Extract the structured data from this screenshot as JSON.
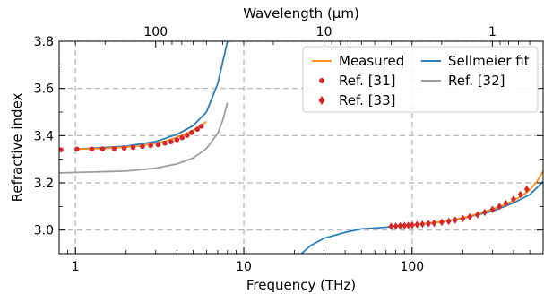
{
  "chart_data": {
    "type": "line",
    "xlabel": "Frequency (THz)",
    "ylabel": "Refractive index",
    "top_xlabel": "Wavelength (µm)",
    "x_scale": "log",
    "top_x_scale": "log",
    "xlim": [
      0.8,
      600
    ],
    "ylim": [
      2.9,
      3.8
    ],
    "x_ticks": [
      {
        "value": 1,
        "label": "1"
      },
      {
        "value": 10,
        "label": "10"
      },
      {
        "value": 100,
        "label": "100"
      }
    ],
    "y_ticks": [
      {
        "value": 3.0,
        "label": "3.0"
      },
      {
        "value": 3.2,
        "label": "3.2"
      },
      {
        "value": 3.4,
        "label": "3.4"
      },
      {
        "value": 3.6,
        "label": "3.6"
      },
      {
        "value": 3.8,
        "label": "3.8"
      }
    ],
    "top_ticks": [
      {
        "wavelength_um": 100,
        "label": "100"
      },
      {
        "wavelength_um": 10,
        "label": "10"
      },
      {
        "wavelength_um": 1,
        "label": "1"
      }
    ],
    "grid": true,
    "legend_position": "top-right",
    "legend_order": [
      "Measured",
      "Sellmeier fit",
      "Ref. [31]",
      "Ref. [32]",
      "Ref. [33]"
    ],
    "series": [
      {
        "name": "Sellmeier fit",
        "kind": "line",
        "color": "#2c7fb8",
        "x": [
          1,
          2,
          3,
          4,
          5,
          6,
          7,
          8
        ],
        "y": [
          3.343,
          3.355,
          3.375,
          3.405,
          3.442,
          3.5,
          3.62,
          3.8
        ]
      },
      {
        "name": "Sellmeier fit",
        "kind": "line",
        "color": "#2c7fb8",
        "x": [
          22,
          25,
          30,
          40,
          50,
          70,
          100,
          150,
          200,
          300,
          400,
          500,
          600
        ],
        "y": [
          2.9,
          2.935,
          2.965,
          2.99,
          3.005,
          3.012,
          3.022,
          3.035,
          3.05,
          3.08,
          3.115,
          3.15,
          3.205
        ]
      },
      {
        "name": "Measured",
        "kind": "line",
        "color": "#ff8c1a",
        "x": [
          1,
          1.5,
          2,
          2.5,
          3,
          3.5,
          4,
          4.5,
          5,
          5.5,
          6
        ],
        "y": [
          3.343,
          3.346,
          3.352,
          3.358,
          3.368,
          3.379,
          3.393,
          3.407,
          3.423,
          3.44,
          3.46
        ]
      },
      {
        "name": "Measured",
        "kind": "line",
        "color": "#ff8c1a",
        "x": [
          75,
          100,
          150,
          200,
          250,
          300,
          350,
          400,
          450,
          500,
          550,
          600
        ],
        "y": [
          3.015,
          3.022,
          3.035,
          3.052,
          3.07,
          3.088,
          3.105,
          3.125,
          3.145,
          3.17,
          3.205,
          3.25
        ]
      },
      {
        "name": "Ref. [32]",
        "kind": "line",
        "color": "#9e9e9e",
        "x": [
          0.8,
          1,
          2,
          3,
          4,
          5,
          6,
          7,
          7.5,
          8
        ],
        "y": [
          3.242,
          3.244,
          3.25,
          3.262,
          3.28,
          3.305,
          3.345,
          3.41,
          3.465,
          3.54
        ]
      },
      {
        "name": "Ref. [31]",
        "kind": "scatter",
        "marker": "circle",
        "color": "#d62728",
        "x": [
          0.82,
          1.02,
          1.25,
          1.45,
          1.7,
          1.95,
          2.2,
          2.5,
          2.8,
          3.1,
          3.4,
          3.7,
          4.0,
          4.3,
          4.6,
          4.9,
          5.3,
          5.6
        ],
        "y": [
          3.34,
          3.343,
          3.343,
          3.344,
          3.345,
          3.347,
          3.35,
          3.354,
          3.358,
          3.362,
          3.368,
          3.374,
          3.382,
          3.391,
          3.401,
          3.413,
          3.427,
          3.44
        ]
      },
      {
        "name": "Ref. [33]",
        "kind": "scatter",
        "marker": "diamond",
        "color": "#d62728",
        "x": [
          75,
          80,
          85,
          90,
          95,
          100,
          107,
          115,
          125,
          135,
          150,
          165,
          180,
          200,
          220,
          245,
          270,
          300,
          330,
          360,
          400,
          440,
          480
        ],
        "y": [
          3.016,
          3.017,
          3.018,
          3.019,
          3.02,
          3.021,
          3.023,
          3.025,
          3.027,
          3.029,
          3.033,
          3.037,
          3.042,
          3.049,
          3.056,
          3.065,
          3.075,
          3.087,
          3.1,
          3.113,
          3.131,
          3.151,
          3.173
        ]
      }
    ]
  }
}
